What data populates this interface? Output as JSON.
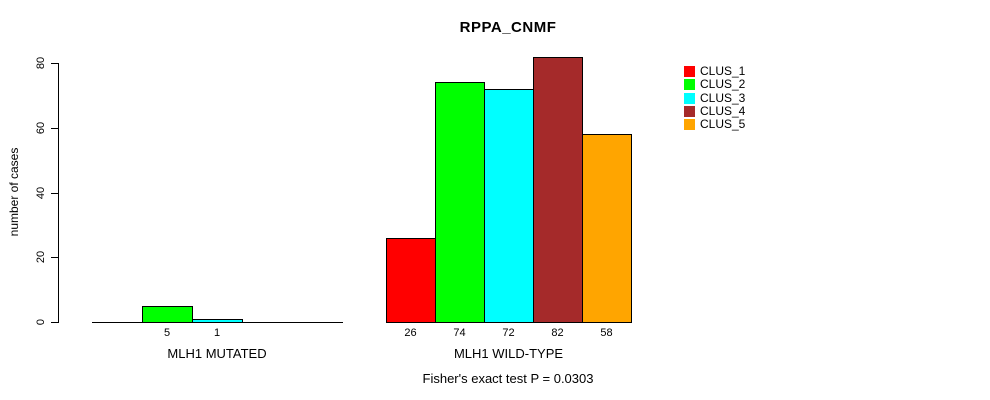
{
  "chart_data": {
    "type": "bar",
    "title": "RPPA_CNMF",
    "ylabel": "number of cases",
    "xlabel": "",
    "footnote": "Fisher's exact test P = 0.0303",
    "ylim": [
      0,
      80
    ],
    "yticks": [
      0,
      20,
      40,
      60,
      80
    ],
    "grid": "off",
    "legend_position": "right-outside",
    "categories": [
      "MLH1 MUTATED",
      "MLH1 WILD-TYPE"
    ],
    "series": [
      {
        "name": "CLUS_1",
        "color": "#FF0000",
        "values": [
          0,
          26
        ]
      },
      {
        "name": "CLUS_2",
        "color": "#00FF00",
        "values": [
          5,
          74
        ]
      },
      {
        "name": "CLUS_3",
        "color": "#00FFFF",
        "values": [
          1,
          72
        ]
      },
      {
        "name": "CLUS_4",
        "color": "#A52A2A",
        "values": [
          0,
          82
        ]
      },
      {
        "name": "CLUS_5",
        "color": "#FFA500",
        "values": [
          0,
          58
        ]
      }
    ],
    "bar_label_rule": "each nonzero bar is labeled with its value below the axis; zero-value bars are not drawn"
  }
}
